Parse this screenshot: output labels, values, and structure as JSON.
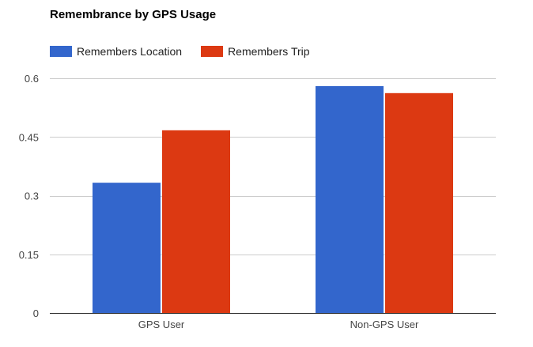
{
  "chart_data": {
    "type": "bar",
    "title": "Remembrance by GPS Usage",
    "categories": [
      "GPS User",
      "Non-GPS User"
    ],
    "series": [
      {
        "name": "Remembers Location",
        "values": [
          0.333,
          0.58
        ],
        "color": "#3366cc"
      },
      {
        "name": "Remembers Trip",
        "values": [
          0.467,
          0.562
        ],
        "color": "#dc3912"
      }
    ],
    "xlabel": "",
    "ylabel": "",
    "ylim": [
      0,
      0.6
    ],
    "yticks": [
      "0",
      "0.15",
      "0.3",
      "0.45",
      "0.6"
    ],
    "ytick_values": [
      0,
      0.15,
      0.3,
      0.45,
      0.6
    ],
    "grid": true,
    "legend_position": "top"
  }
}
